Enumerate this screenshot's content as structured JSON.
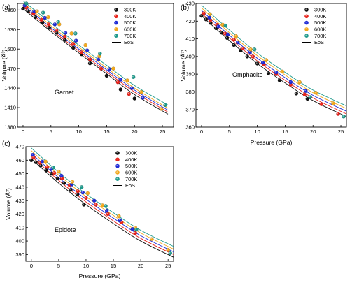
{
  "chart_data": [
    {
      "type": "scatter",
      "panel": "(a)",
      "mineral": "Garnet",
      "xlabel": "",
      "ylabel": "Volume (Å³)",
      "xlim": [
        -1,
        27
      ],
      "ylim": [
        1380,
        1570
      ],
      "x_ticks": [
        "0",
        "5",
        "10",
        "15",
        "20",
        "25"
      ],
      "y_ticks": [
        "1380",
        "1410",
        "1440",
        "1470",
        "1500",
        "1530",
        "1560"
      ],
      "legend_position": "top-right",
      "eos_label": "EoS",
      "series": [
        {
          "name": "300K",
          "color": "#111111",
          "x": [
            0,
            0.9,
            2.2,
            3.5,
            4.7,
            6,
            7.5,
            9,
            10.5,
            12,
            15,
            17.5,
            20
          ],
          "y": [
            1562,
            1558,
            1549,
            1541,
            1533,
            1525,
            1514,
            1502,
            1492,
            1478,
            1459,
            1438,
            1424
          ],
          "eos_y": [
            1562,
            1527,
            1494,
            1462,
            1430,
            1400
          ]
        },
        {
          "name": "400K",
          "color": "#e8231b",
          "x": [
            0.6,
            1.9,
            3.3,
            4.6,
            6,
            7.5,
            9,
            10.5,
            12,
            14,
            17,
            19
          ],
          "y": [
            1564,
            1555,
            1545,
            1538,
            1529,
            1519,
            1508,
            1495,
            1484,
            1470,
            1449,
            1431
          ],
          "eos_y": [
            1565,
            1530,
            1497,
            1465,
            1434,
            1403
          ]
        },
        {
          "name": "500K",
          "color": "#1f2bd6",
          "x": [
            0.3,
            2,
            3.9,
            5.7,
            7.6,
            9.5,
            11.5,
            13.5,
            15.5,
            17.5,
            19.5,
            21.5
          ],
          "y": [
            1567,
            1558,
            1548,
            1538,
            1525,
            1513,
            1498,
            1484,
            1469,
            1453,
            1440,
            1425
          ],
          "eos_y": [
            1568,
            1533,
            1500,
            1468,
            1437,
            1406
          ]
        },
        {
          "name": "600K",
          "color": "#f2a81d",
          "x": [
            2.5,
            4.5,
            6.5,
            8.7,
            11.2,
            13.7,
            16.2,
            18.7,
            21.2,
            24.8
          ],
          "y": [
            1558,
            1549,
            1538,
            1524,
            1506,
            1489,
            1470,
            1452,
            1434,
            1408
          ],
          "eos_y": [
            1571,
            1536,
            1503,
            1471,
            1440,
            1409
          ]
        },
        {
          "name": "700K",
          "color": "#1f9a8c",
          "x": [
            0.6,
            3.6,
            6.3,
            9.4,
            13.8,
            19.8,
            25.5
          ],
          "y": [
            1570,
            1556,
            1542,
            1524,
            1493,
            1457,
            1414
          ],
          "eos_y": [
            1574,
            1540,
            1506,
            1475,
            1444,
            1414
          ]
        }
      ],
      "eos_x": [
        0,
        5,
        10,
        15,
        20,
        26
      ]
    },
    {
      "type": "scatter",
      "panel": "(b)",
      "mineral": "Omphacite",
      "xlabel": "Pressure (GPa)",
      "ylabel": "Volume (Å³)",
      "xlim": [
        -1,
        26
      ],
      "ylim": [
        360,
        430
      ],
      "x_ticks": [
        "0",
        "5",
        "10",
        "15",
        "20",
        "25"
      ],
      "y_ticks": [
        "360",
        "370",
        "380",
        "390",
        "400",
        "410",
        "420",
        "430"
      ],
      "legend_position": "top-right",
      "eos_label": "EoS",
      "series": [
        {
          "name": "300K",
          "color": "#111111",
          "x": [
            0,
            0.8,
            1.6,
            2.6,
            3.6,
            4.6,
            5.8,
            7,
            8.2,
            10,
            12,
            14,
            17,
            19
          ],
          "y": [
            423,
            421,
            419,
            416,
            413.5,
            410.5,
            406.5,
            403.5,
            400,
            396,
            390.5,
            386.5,
            379,
            376
          ],
          "eos_y": [
            423,
            409,
            396,
            385,
            375,
            366
          ]
        },
        {
          "name": "400K",
          "color": "#e8231b",
          "x": [
            0.4,
            1.6,
            2.8,
            4.2,
            5.8,
            7.4,
            9.2,
            11.2,
            13.4,
            16,
            18.5,
            21.5,
            24.5
          ],
          "y": [
            424.5,
            420.5,
            418,
            413,
            409.5,
            404.5,
            400,
            395.5,
            390,
            384,
            378.5,
            373,
            367.5
          ],
          "eos_y": [
            424.5,
            410.5,
            397.5,
            386.5,
            376.5,
            367.5
          ]
        },
        {
          "name": "500K",
          "color": "#1f2bd6",
          "x": [
            1.4,
            3,
            4.7,
            6.5,
            8.7,
            11,
            13.4,
            16,
            18.7
          ],
          "y": [
            422,
            417,
            412.5,
            408,
            402.5,
            396.5,
            391,
            385.5,
            380.5
          ],
          "eos_y": [
            426,
            412,
            399,
            388,
            378,
            369
          ]
        },
        {
          "name": "600K",
          "color": "#f2a81d",
          "x": [
            1.5,
            3.8,
            6.2,
            8.8,
            11.6,
            14.5,
            17.6,
            20.5,
            23.6
          ],
          "y": [
            424,
            418,
            411.5,
            404,
            398,
            391.5,
            385.5,
            379.5,
            373.5
          ],
          "eos_y": [
            427.5,
            413.5,
            400.5,
            389.5,
            379.5,
            370.5
          ]
        },
        {
          "name": "700K",
          "color": "#1f9a8c",
          "x": [
            4.3,
            9.5,
            19.5,
            25.5
          ],
          "y": [
            417.5,
            404,
            377,
            366
          ],
          "eos_y": [
            429,
            415,
            402,
            391,
            381,
            372
          ]
        }
      ],
      "eos_x": [
        0,
        5,
        10,
        15,
        20,
        26
      ]
    },
    {
      "type": "scatter",
      "panel": "(c)",
      "mineral": "Epidote",
      "xlabel": "Pressure (GPa)",
      "ylabel": "Volume (Å³)",
      "xlim": [
        -1,
        26
      ],
      "ylim": [
        385,
        470
      ],
      "x_ticks": [
        "0",
        "5",
        "10",
        "15",
        "20",
        "25"
      ],
      "y_ticks": [
        "390",
        "400",
        "410",
        "420",
        "430",
        "440",
        "450",
        "460",
        "470"
      ],
      "legend_position": "top-right",
      "eos_label": "EoS",
      "series": [
        {
          "name": "300K",
          "color": "#111111",
          "x": [
            0,
            0.8,
            1.7,
            2.7,
            3.7,
            4.8,
            6,
            7.2,
            8.4,
            9.6
          ],
          "y": [
            460,
            458.5,
            456,
            452.5,
            450,
            446.5,
            443,
            438,
            434.5,
            427
          ],
          "eos_y": [
            461,
            443,
            427,
            413,
            400,
            388
          ]
        },
        {
          "name": "400K",
          "color": "#e8231b",
          "x": [
            0.4,
            1.6,
            2.9,
            4.2,
            5.6,
            7,
            8.5,
            10,
            11.8,
            14,
            16.5,
            19
          ],
          "y": [
            462,
            458,
            455,
            450.5,
            446.5,
            441.5,
            437,
            432,
            427,
            420,
            414,
            406
          ],
          "eos_y": [
            463,
            445,
            429,
            415,
            402,
            390
          ]
        },
        {
          "name": "500K",
          "color": "#1f2bd6",
          "x": [
            0.3,
            2,
            3.7,
            5.5,
            7.4,
            9.4,
            11.5,
            13.8,
            16.2,
            18.5
          ],
          "y": [
            464,
            459,
            453.5,
            448.5,
            442,
            436,
            430,
            422.5,
            415.5,
            409
          ],
          "eos_y": [
            465,
            447,
            431,
            417,
            404,
            392
          ]
        },
        {
          "name": "600K",
          "color": "#f2a81d",
          "x": [
            2.6,
            5,
            7.5,
            10.3,
            13,
            16,
            19,
            22,
            25
          ],
          "y": [
            459,
            451.5,
            444,
            435.5,
            426.5,
            418.5,
            410,
            401.5,
            393.5
          ],
          "eos_y": [
            467,
            449,
            433,
            419,
            406,
            394
          ]
        },
        {
          "name": "700K",
          "color": "#1f9a8c",
          "x": [
            4,
            9.2,
            13.6,
            19.2,
            25.4
          ],
          "y": [
            454.5,
            440,
            426,
            408.5,
            391
          ],
          "eos_y": [
            469,
            451,
            435,
            421,
            408,
            396
          ]
        }
      ],
      "eos_x": [
        0,
        5,
        10,
        15,
        20,
        26
      ]
    }
  ]
}
